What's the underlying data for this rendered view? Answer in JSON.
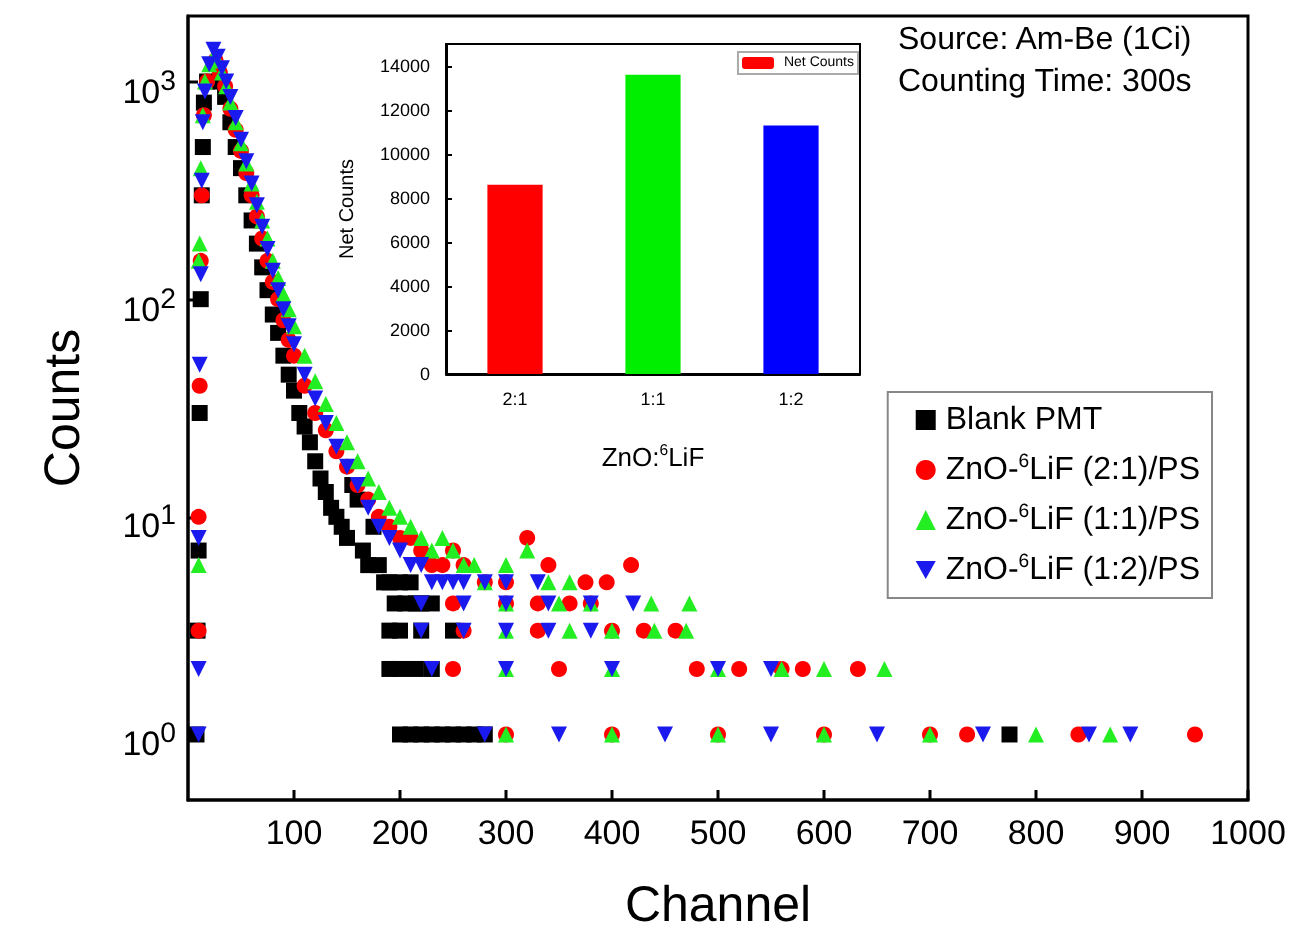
{
  "chart_data": [
    {
      "type": "scatter",
      "xlabel": "Channel",
      "ylabel": "Counts",
      "log": "y",
      "xlim": [
        0,
        1000
      ],
      "xticks": [
        100,
        200,
        300,
        400,
        500,
        600,
        700,
        800,
        900,
        1000
      ],
      "ylim": [
        0.5,
        2000
      ],
      "yticks": [
        {
          "value": 1,
          "label": "10$^{0}$"
        },
        {
          "value": 10,
          "label": "10$^{1}$"
        },
        {
          "value": 100,
          "label": "10$^{2}$"
        },
        {
          "value": 1000,
          "label": "10$^{3}$"
        }
      ],
      "grid": false,
      "legend": "right",
      "annotations": [
        "Source: Am-Be (1Ci)",
        "Counting Time: 300s"
      ],
      "series": [
        {
          "name": "Blank PMT",
          "color": "#000000",
          "marker": "square",
          "x": [
            8,
            9,
            10,
            11,
            12,
            13,
            14,
            15,
            18,
            22,
            26,
            30,
            35,
            40,
            45,
            50,
            55,
            60,
            65,
            70,
            75,
            80,
            85,
            90,
            95,
            100,
            105,
            110,
            115,
            120,
            125,
            130,
            135,
            140,
            145,
            150,
            155,
            160,
            165,
            170,
            175,
            180,
            185,
            190,
            195,
            200,
            205,
            210,
            215,
            220,
            230,
            190,
            200,
            220,
            250,
            190,
            200,
            215,
            230,
            200,
            210,
            220,
            230,
            240,
            250,
            260,
            270,
            280,
            775
          ],
          "values": [
            1,
            3,
            7,
            30,
            100,
            300,
            500,
            800,
            1000,
            null,
            null,
            1000,
            850,
            650,
            500,
            400,
            300,
            230,
            180,
            140,
            110,
            85,
            70,
            55,
            45,
            38,
            30,
            26,
            22,
            18,
            15,
            13,
            11,
            10,
            9,
            8,
            14,
            12,
            7,
            6,
            9,
            6,
            5,
            5,
            4,
            5,
            4,
            5,
            4,
            4,
            4,
            3,
            3,
            3,
            3,
            2,
            2,
            2,
            2,
            1,
            1,
            1,
            1,
            1,
            1,
            1,
            1,
            1,
            1
          ]
        },
        {
          "name": "ZnO-$^{6}$LiF (2:1)/PS",
          "color": "#ff0000",
          "marker": "circle",
          "x": [
            10,
            10,
            11,
            12,
            13,
            15,
            18,
            22,
            26,
            30,
            35,
            40,
            45,
            50,
            55,
            60,
            65,
            70,
            75,
            80,
            85,
            90,
            95,
            100,
            110,
            120,
            130,
            140,
            150,
            160,
            170,
            180,
            190,
            200,
            210,
            220,
            230,
            240,
            250,
            260,
            280,
            300,
            320,
            340,
            375,
            395,
            418,
            250,
            300,
            330,
            360,
            380,
            260,
            330,
            400,
            430,
            460,
            250,
            350,
            480,
            520,
            560,
            580,
            632,
            300,
            400,
            500,
            600,
            700,
            735,
            840,
            950
          ],
          "values": [
            3,
            10,
            40,
            150,
            300,
            700,
            1000,
            null,
            1250,
            1100,
            950,
            750,
            600,
            480,
            380,
            300,
            240,
            190,
            150,
            120,
            100,
            80,
            65,
            55,
            40,
            30,
            25,
            20,
            17,
            14,
            12,
            10,
            9,
            8,
            8,
            7,
            6,
            6,
            7,
            6,
            5,
            5,
            8,
            6,
            5,
            5,
            6,
            4,
            4,
            4,
            4,
            4,
            3,
            3,
            3,
            3,
            3,
            2,
            2,
            2,
            2,
            2,
            2,
            2,
            1,
            1,
            1,
            1,
            1,
            1,
            1,
            1
          ]
        },
        {
          "name": "ZnO-$^{6}$LiF (1:1)/PS",
          "color": "#22ee22",
          "marker": "triangle",
          "x": [
            10,
            10,
            11,
            12,
            14,
            16,
            20,
            24,
            28,
            32,
            36,
            40,
            45,
            50,
            55,
            60,
            65,
            70,
            75,
            80,
            85,
            90,
            95,
            100,
            110,
            120,
            130,
            140,
            150,
            160,
            170,
            180,
            190,
            200,
            210,
            220,
            230,
            240,
            250,
            260,
            270,
            280,
            300,
            320,
            340,
            360,
            300,
            350,
            380,
            437,
            473,
            300,
            360,
            400,
            440,
            470,
            300,
            400,
            500,
            560,
            600,
            657,
            300,
            400,
            500,
            600,
            700,
            800,
            870
          ],
          "values": [
            6,
            150,
            180,
            400,
            700,
            1000,
            1200,
            1300,
            1250,
            1100,
            950,
            800,
            650,
            520,
            420,
            340,
            280,
            230,
            190,
            150,
            125,
            105,
            90,
            75,
            55,
            42,
            33,
            27,
            22,
            18,
            15,
            13,
            11,
            10,
            9,
            8,
            7,
            8,
            7,
            6,
            6,
            5,
            6,
            7,
            5,
            5,
            4,
            4,
            4,
            4,
            4,
            3,
            3,
            3,
            3,
            3,
            2,
            2,
            2,
            2,
            2,
            2,
            1,
            1,
            1,
            1,
            1,
            1,
            1
          ]
        },
        {
          "name": "ZnO-$^{6}$LiF (1:2)/PS",
          "color": "#1a1aee",
          "marker": "triangle-down",
          "x": [
            10,
            10,
            10,
            11,
            12,
            13,
            14,
            16,
            20,
            24,
            28,
            32,
            36,
            40,
            45,
            50,
            55,
            60,
            65,
            70,
            75,
            80,
            85,
            90,
            95,
            100,
            110,
            120,
            130,
            140,
            150,
            160,
            170,
            180,
            190,
            200,
            210,
            220,
            230,
            240,
            250,
            260,
            280,
            300,
            330,
            220,
            260,
            300,
            340,
            380,
            420,
            220,
            260,
            300,
            340,
            380,
            230,
            300,
            400,
            500,
            550,
            280,
            350,
            450,
            550,
            650,
            750,
            850,
            889
          ],
          "values": [
            1,
            2,
            8,
            50,
            130,
            350,
            650,
            900,
            1200,
            1400,
            1300,
            1150,
            1000,
            850,
            680,
            540,
            430,
            340,
            270,
            215,
            170,
            135,
            110,
            90,
            75,
            62,
            45,
            35,
            27,
            21,
            17,
            14,
            11,
            9,
            8,
            7,
            6,
            6,
            5,
            5,
            5,
            5,
            5,
            5,
            5,
            4,
            4,
            4,
            4,
            4,
            4,
            3,
            3,
            3,
            3,
            3,
            2,
            2,
            2,
            2,
            2,
            1,
            1,
            1,
            1,
            1,
            1,
            1,
            1
          ]
        }
      ]
    },
    {
      "type": "bar",
      "xlabel": "ZnO:$^{6}$LiF",
      "ylabel": "Net Counts",
      "categories": [
        "2:1",
        "1:1",
        "1:2"
      ],
      "ylim": [
        0,
        15000
      ],
      "yticks": [
        0,
        2000,
        4000,
        6000,
        8000,
        10000,
        12000,
        14000
      ],
      "grid": false,
      "legend": "top right",
      "colors": [
        "#ff0000",
        "#00ee00",
        "#0000ff"
      ],
      "series": [
        {
          "name": "Net Counts",
          "values": [
            8600,
            13600,
            11300
          ]
        }
      ]
    }
  ]
}
